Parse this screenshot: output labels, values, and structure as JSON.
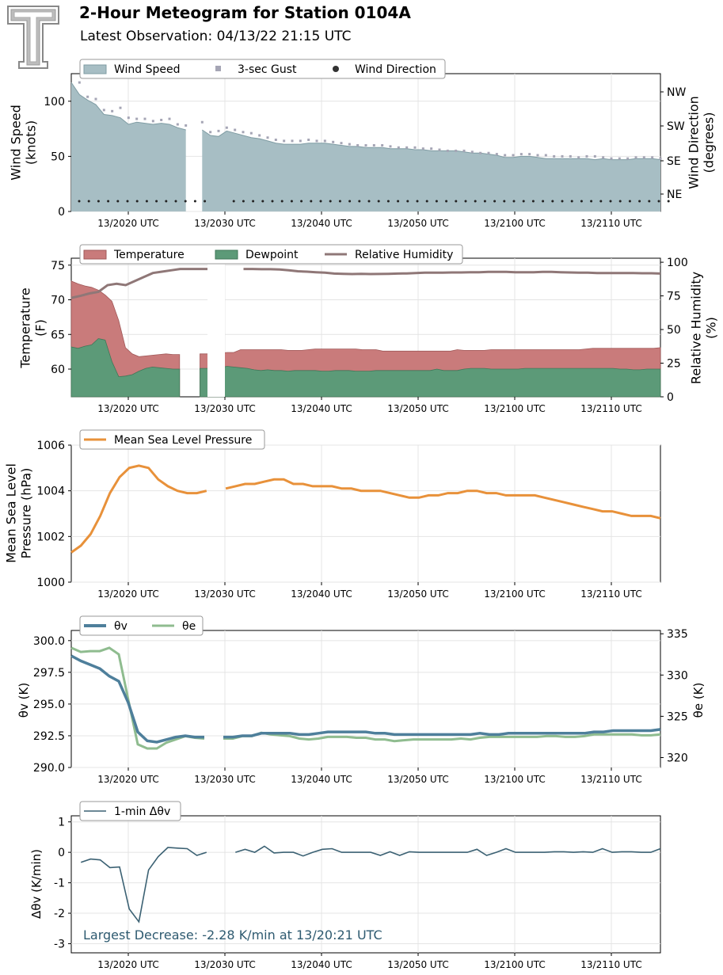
{
  "header": {
    "title": "2-Hour Meteogram for Station 0104A",
    "subtitle": "Latest Observation: 04/13/22 21:15 UTC"
  },
  "chart_data": [
    {
      "type": "area",
      "xticks": [
        "13/2020 UTC",
        "13/2030 UTC",
        "13/2040 UTC",
        "13/2050 UTC",
        "13/2100 UTC",
        "13/2110 UTC"
      ],
      "ylabel": "Wind Speed\n(knots)",
      "ylabel2": "Wind Direction\n(degrees)",
      "ylim": [
        0,
        125
      ],
      "yticks": [
        0,
        50,
        100
      ],
      "y2ticks": [
        "NE",
        "SE",
        "SW",
        "NW"
      ],
      "legend": [
        "Wind Speed",
        "3-sec Gust",
        "Wind Direction"
      ],
      "series": [
        {
          "name": "Wind Speed",
          "values": [
            117,
            106,
            101,
            97,
            88,
            87,
            85,
            79,
            81,
            80,
            79,
            80,
            79,
            76,
            74,
            null,
            74,
            69,
            68,
            73,
            71,
            69,
            67,
            66,
            64,
            62,
            61,
            61,
            61,
            62,
            62,
            62,
            61,
            60,
            59,
            59,
            58,
            58,
            58,
            57,
            57,
            57,
            56,
            56,
            55,
            55,
            55,
            55,
            54,
            53,
            53,
            52,
            51,
            49,
            49,
            50,
            50,
            49,
            48,
            48,
            48,
            48,
            48,
            48,
            47,
            48,
            47,
            47,
            47,
            48,
            48,
            48,
            47
          ]
        },
        {
          "name": "3-sec Gust",
          "values": [
            null,
            117,
            104,
            102,
            92,
            91,
            94,
            85,
            84,
            84,
            82,
            83,
            84,
            79,
            78,
            null,
            81,
            72,
            73,
            76,
            74,
            72,
            71,
            69,
            67,
            65,
            64,
            64,
            64,
            65,
            64,
            64,
            63,
            62,
            61,
            60,
            60,
            60,
            60,
            59,
            58,
            58,
            58,
            57,
            57,
            56,
            55,
            55,
            55,
            54,
            53,
            53,
            52,
            51,
            51,
            52,
            52,
            51,
            51,
            50,
            50,
            50,
            49,
            50,
            50,
            49,
            48,
            48,
            48,
            49,
            49,
            49,
            48
          ]
        },
        {
          "name": "Wind Direction",
          "values": "constant NE-ESE (~9 on knots axis)"
        }
      ]
    },
    {
      "type": "area",
      "xticks": [
        "13/2020 UTC",
        "13/2030 UTC",
        "13/2040 UTC",
        "13/2050 UTC",
        "13/2100 UTC",
        "13/2110 UTC"
      ],
      "ylabel": "Temperature\n(F)",
      "ylabel2": "Relative Humidity\n(%)",
      "ylim": [
        56,
        76
      ],
      "yticks": [
        60,
        65,
        70,
        75
      ],
      "y2lim": [
        0,
        103
      ],
      "y2ticks": [
        0,
        25,
        50,
        75,
        100
      ],
      "legend": [
        "Temperature",
        "Dewpoint",
        "Relative Humidity"
      ],
      "series": [
        {
          "name": "Temperature",
          "values": [
            72.7,
            72.3,
            72,
            71.8,
            71.4,
            70.7,
            69.8,
            67,
            63.1,
            62.2,
            61.8,
            61.9,
            62,
            62.1,
            62.2,
            62.1,
            62.1,
            null,
            null,
            62.2,
            62.2,
            62.2,
            62.3,
            62.4,
            62.4,
            62.8,
            62.8,
            62.8,
            62.8,
            62.8,
            62.8,
            62.8,
            62.7,
            62.7,
            62.7,
            62.8,
            62.9,
            62.9,
            62.9,
            62.9,
            62.9,
            62.9,
            62.9,
            62.8,
            62.8,
            62.8,
            62.6,
            62.6,
            62.6,
            62.6,
            62.6,
            62.6,
            62.6,
            62.6,
            62.6,
            62.6,
            62.6,
            62.8,
            62.7,
            62.7,
            62.7,
            62.7,
            62.8,
            62.8,
            62.8,
            62.8,
            62.8,
            62.8,
            62.8,
            62.8,
            62.8,
            62.8,
            62.8,
            62.8,
            62.8,
            62.8,
            62.9,
            63.0,
            63.0,
            63.0,
            63.0,
            63.0,
            63.0,
            63.0,
            63.0,
            63.0,
            63.0,
            63.1
          ]
        },
        {
          "name": "Dewpoint",
          "values": [
            63.2,
            63,
            63.3,
            63.5,
            64.4,
            64.2,
            61.1,
            58.9,
            59,
            59.2,
            59.7,
            60.1,
            60.3,
            60.2,
            60.1,
            60,
            60,
            null,
            null,
            60.1,
            60.1,
            60.2,
            60.2,
            60.4,
            60.3,
            60.2,
            60.1,
            59.9,
            59.8,
            59.9,
            59.8,
            59.8,
            59.7,
            59.8,
            59.8,
            59.8,
            59.8,
            59.7,
            59.7,
            59.8,
            59.8,
            59.8,
            59.7,
            59.7,
            59.7,
            59.8,
            59.8,
            59.8,
            59.8,
            59.8,
            59.8,
            59.8,
            59.8,
            59.8,
            60.0,
            59.8,
            59.8,
            59.8,
            60.0,
            60.1,
            60.1,
            60.1,
            60.0,
            60.0,
            60.0,
            60.0,
            60.0,
            60.1,
            60.1,
            60.1,
            60.1,
            60.1,
            60.1,
            60.1,
            60.1,
            60.1,
            60.1,
            60.1,
            60.1,
            60.1,
            60.1,
            60.0,
            60.0,
            59.9,
            59.9,
            60.0,
            60.0,
            60.0
          ]
        },
        {
          "name": "Relative Humidity",
          "values": [
            73.5,
            75,
            76.8,
            78,
            83,
            84,
            83,
            86,
            89,
            92,
            93,
            94,
            95,
            95,
            95,
            95,
            95,
            null,
            null,
            95,
            95,
            94.8,
            94.8,
            94.6,
            94,
            93.3,
            93,
            92.6,
            92.3,
            91.6,
            91.4,
            91.2,
            91.4,
            91.2,
            91.3,
            91.4,
            91.6,
            91.7,
            92,
            92.2,
            92.3,
            92.3,
            92.4,
            92.4,
            92.6,
            92.6,
            92.8,
            92.8,
            92.8,
            92.6,
            92.6,
            92.6,
            92.8,
            92.8,
            92.6,
            92.4,
            92.2,
            92.2,
            92,
            92,
            92,
            92,
            92,
            91.8,
            91.8,
            91.6
          ]
        }
      ]
    },
    {
      "type": "line",
      "xticks": [
        "13/2020 UTC",
        "13/2030 UTC",
        "13/2040 UTC",
        "13/2050 UTC",
        "13/2100 UTC",
        "13/2110 UTC"
      ],
      "ylabel": "Mean Sea Level\nPressure (hPa)",
      "ylim": [
        1000,
        1006
      ],
      "yticks": [
        1000,
        1002,
        1004,
        1006
      ],
      "legend": [
        "Mean Sea Level Pressure"
      ],
      "series": [
        {
          "name": "Mean Sea Level Pressure",
          "values": [
            1001.3,
            1001.6,
            1002.1,
            1002.9,
            1003.9,
            1004.6,
            1005.0,
            1005.1,
            1005.0,
            1004.5,
            1004.2,
            1004.0,
            1003.9,
            1003.9,
            1004.0,
            null,
            1004.1,
            1004.2,
            1004.3,
            1004.3,
            1004.4,
            1004.5,
            1004.5,
            1004.3,
            1004.3,
            1004.2,
            1004.2,
            1004.2,
            1004.1,
            1004.1,
            1004.0,
            1004.0,
            1004.0,
            1003.9,
            1003.8,
            1003.7,
            1003.7,
            1003.8,
            1003.8,
            1003.9,
            1003.9,
            1004.0,
            1004.0,
            1003.9,
            1003.9,
            1003.8,
            1003.8,
            1003.8,
            1003.8,
            1003.7,
            1003.6,
            1003.5,
            1003.4,
            1003.3,
            1003.2,
            1003.1,
            1003.1,
            1003.0,
            1002.9,
            1002.9,
            1002.9,
            1002.8
          ]
        }
      ]
    },
    {
      "type": "line",
      "xticks": [
        "13/2020 UTC",
        "13/2030 UTC",
        "13/2040 UTC",
        "13/2050 UTC",
        "13/2100 UTC",
        "13/2110 UTC"
      ],
      "ylim": [
        290,
        300.8
      ],
      "yticks": [
        290.0,
        292.5,
        295.0,
        297.5,
        300.0
      ],
      "y2lim": [
        318.8,
        335.4
      ],
      "y2ticks": [
        320,
        325,
        330,
        335
      ],
      "series": [
        {
          "name": "θv",
          "values": [
            298.8,
            298.4,
            298.1,
            297.8,
            297.2,
            296.8,
            295.1,
            292.8,
            292.1,
            292.0,
            292.2,
            292.4,
            292.5,
            292.4,
            292.4,
            null,
            292.4,
            292.4,
            292.5,
            292.5,
            292.7,
            292.7,
            292.7,
            292.7,
            292.6,
            292.6,
            292.7,
            292.8,
            292.8,
            292.8,
            292.8,
            292.8,
            292.7,
            292.7,
            292.6,
            292.6,
            292.6,
            292.6,
            292.6,
            292.6,
            292.6,
            292.6,
            292.6,
            292.7,
            292.6,
            292.6,
            292.7,
            292.7,
            292.7,
            292.7,
            292.7,
            292.7,
            292.7,
            292.7,
            292.7,
            292.8,
            292.8,
            292.9,
            292.9,
            292.9,
            292.9,
            292.9,
            293.0
          ]
        },
        {
          "name": "θe",
          "values": [
            333.3,
            332.8,
            332.9,
            332.9,
            333.3,
            332.5,
            327.0,
            321.6,
            321.1,
            321.1,
            321.8,
            322.2,
            322.6,
            322.4,
            322.3,
            null,
            322.3,
            322.3,
            322.6,
            322.6,
            323.0,
            322.8,
            322.7,
            322.6,
            322.3,
            322.2,
            322.3,
            322.5,
            322.5,
            322.5,
            322.4,
            322.4,
            322.2,
            322.2,
            322.0,
            322.1,
            322.2,
            322.2,
            322.2,
            322.2,
            322.2,
            322.3,
            322.2,
            322.4,
            322.5,
            322.5,
            322.5,
            322.5,
            322.5,
            322.5,
            322.6,
            322.6,
            322.5,
            322.5,
            322.6,
            322.8,
            322.8,
            322.8,
            322.8,
            322.8,
            322.7,
            322.7,
            322.8
          ]
        }
      ]
    },
    {
      "type": "line",
      "xticks": [
        "13/2020 UTC",
        "13/2030 UTC",
        "13/2040 UTC",
        "13/2050 UTC",
        "13/2100 UTC",
        "13/2110 UTC"
      ],
      "ylabel": "Δθ$_v$ (K/min)",
      "ylim": [
        -3.3,
        1.2
      ],
      "yticks": [
        -3,
        -2,
        -1,
        0,
        1
      ],
      "annotation": "Largest Decrease: -2.28 K/min at 13/20:21 UTC",
      "series": [
        {
          "name": "1-min Δθv",
          "values": [
            null,
            -0.33,
            -0.22,
            -0.25,
            -0.5,
            -0.48,
            -1.86,
            -2.28,
            -0.58,
            -0.14,
            0.16,
            0.14,
            0.12,
            -0.1,
            0.0,
            null,
            null,
            0.0,
            0.1,
            0.0,
            0.2,
            -0.02,
            0.0,
            0.0,
            -0.12,
            0.0,
            0.1,
            0.12,
            0.0,
            0.0,
            0.0,
            0.0,
            -0.1,
            0.02,
            -0.1,
            0.02,
            0.0,
            0.0,
            0.0,
            0.0,
            0.0,
            0.0,
            0.1,
            -0.1,
            0.0,
            0.12,
            0.0,
            0.0,
            0.0,
            0.0,
            0.02,
            0.02,
            0.0,
            0.02,
            0.0,
            0.12,
            0.0,
            0.02,
            0.02,
            0.0,
            0.0,
            0.12
          ]
        }
      ]
    }
  ],
  "legends": {
    "wind_speed": "Wind Speed",
    "gust": "3-sec Gust",
    "wind_dir": "Wind Direction",
    "temperature": "Temperature",
    "dewpoint": "Dewpoint",
    "rh": "Relative Humidity",
    "mslp": "Mean Sea Level Pressure",
    "thetav": "θv",
    "thetae": "θe",
    "dtheta": "1-min Δθv"
  },
  "colors": {
    "wind_fill": "#a7bec4",
    "wind_line": "#7f9ca3",
    "gust": "#a5a5b5",
    "temp_fill": "#c97b7b",
    "dew_fill": "#5c9a78",
    "rh_line": "#8f7777",
    "mslp": "#e8913a",
    "thetav": "#4e7f9b",
    "thetae": "#8fbc8f",
    "dtheta": "#3b6173",
    "annotation": "#2e5a70"
  }
}
